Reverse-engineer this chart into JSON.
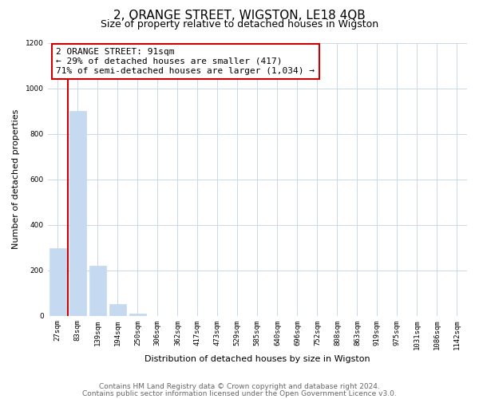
{
  "title": "2, ORANGE STREET, WIGSTON, LE18 4QB",
  "subtitle": "Size of property relative to detached houses in Wigston",
  "xlabel": "Distribution of detached houses by size in Wigston",
  "ylabel": "Number of detached properties",
  "bar_labels": [
    "27sqm",
    "83sqm",
    "139sqm",
    "194sqm",
    "250sqm",
    "306sqm",
    "362sqm",
    "417sqm",
    "473sqm",
    "529sqm",
    "585sqm",
    "640sqm",
    "696sqm",
    "752sqm",
    "808sqm",
    "863sqm",
    "919sqm",
    "975sqm",
    "1031sqm",
    "1086sqm",
    "1142sqm"
  ],
  "bar_heights": [
    295,
    900,
    220,
    50,
    10,
    0,
    0,
    0,
    0,
    0,
    0,
    0,
    0,
    0,
    0,
    0,
    0,
    0,
    0,
    0,
    0
  ],
  "bar_color": "#c5d9f0",
  "bar_edge_color": "#c5d9f0",
  "marker_line_color": "#cc0000",
  "ylim": [
    0,
    1200
  ],
  "yticks": [
    0,
    200,
    400,
    600,
    800,
    1000,
    1200
  ],
  "annotation_box_text": "2 ORANGE STREET: 91sqm\n← 29% of detached houses are smaller (417)\n71% of semi-detached houses are larger (1,034) →",
  "annotation_box_color": "#cc0000",
  "annotation_box_fill": "#ffffff",
  "footer_line1": "Contains HM Land Registry data © Crown copyright and database right 2024.",
  "footer_line2": "Contains public sector information licensed under the Open Government Licence v3.0.",
  "background_color": "#ffffff",
  "grid_color": "#c8d8e8",
  "title_fontsize": 11,
  "subtitle_fontsize": 9,
  "axis_label_fontsize": 8,
  "tick_fontsize": 6.5,
  "annotation_fontsize": 8,
  "footer_fontsize": 6.5
}
